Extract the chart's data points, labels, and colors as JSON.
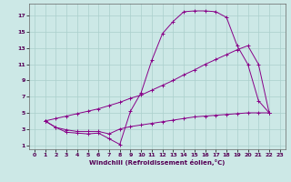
{
  "xlabel": "Windchill (Refroidissement éolien,°C)",
  "bg_color": "#cce8e6",
  "grid_color": "#aacfcc",
  "line_color": "#880088",
  "xlim": [
    -0.5,
    23.5
  ],
  "ylim": [
    0.5,
    18.5
  ],
  "xticks": [
    0,
    1,
    2,
    3,
    4,
    5,
    6,
    7,
    8,
    9,
    10,
    11,
    12,
    13,
    14,
    15,
    16,
    17,
    18,
    19,
    20,
    21,
    22,
    23
  ],
  "yticks": [
    1,
    3,
    5,
    7,
    9,
    11,
    13,
    15,
    17
  ],
  "line1_x": [
    1,
    2,
    3,
    4,
    5,
    6,
    7,
    8,
    9,
    10,
    11,
    12,
    13,
    14,
    15,
    16,
    17,
    18,
    19,
    20,
    21,
    22
  ],
  "line1_y": [
    4,
    3.2,
    2.6,
    2.5,
    2.4,
    2.5,
    1.8,
    1.1,
    5.2,
    7.5,
    11.5,
    14.8,
    16.3,
    17.5,
    17.6,
    17.6,
    17.5,
    16.8,
    13.3,
    11.0,
    6.5,
    5.0
  ],
  "line2_x": [
    1,
    2,
    3,
    4,
    5,
    6,
    7,
    8,
    9,
    10,
    11,
    12,
    13,
    14,
    15,
    16,
    17,
    18,
    19,
    20,
    21,
    22
  ],
  "line2_y": [
    4,
    4.3,
    4.6,
    4.9,
    5.2,
    5.5,
    5.9,
    6.3,
    6.8,
    7.2,
    7.8,
    8.4,
    9.0,
    9.7,
    10.3,
    11.0,
    11.6,
    12.2,
    12.8,
    13.3,
    11.0,
    5.0
  ],
  "line3_x": [
    1,
    2,
    3,
    4,
    5,
    6,
    7,
    8,
    9,
    10,
    11,
    12,
    13,
    14,
    15,
    16,
    17,
    18,
    19,
    20,
    21,
    22
  ],
  "line3_y": [
    4,
    3.2,
    2.9,
    2.7,
    2.7,
    2.7,
    2.4,
    3.0,
    3.3,
    3.5,
    3.7,
    3.9,
    4.1,
    4.3,
    4.5,
    4.6,
    4.7,
    4.8,
    4.9,
    5.0,
    5.0,
    5.0
  ]
}
